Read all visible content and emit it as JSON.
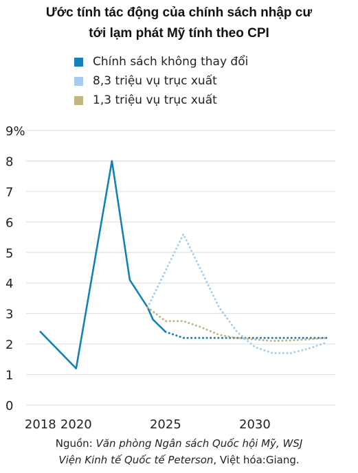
{
  "title": {
    "line1": "Ước tính tác động của chính sách nhập cư",
    "line2": "tới lạm phát Mỹ tính theo CPI"
  },
  "colors": {
    "policy_unchanged": "#1380b8",
    "deport_8_3m": "#a6cdee",
    "deport_1_3m": "#c2b57e",
    "grid": "#dcdcdc"
  },
  "source": {
    "prefix": "Nguồn: ",
    "org1": "Văn phòng Ngân sách Quốc hội Mỹ, WSJ",
    "org2": "Viện Kinh tế Quốc tế Peterson",
    "suffix": ", Việt hóa:Giang."
  },
  "chart_data": {
    "type": "line",
    "y_ticks": [
      "0",
      "1",
      "2",
      "3",
      "4",
      "5",
      "6",
      "7",
      "8",
      "9%"
    ],
    "x_ticks": [
      "2018",
      "2020",
      "2025",
      "2030"
    ],
    "xlim": [
      2017.2,
      2034.5
    ],
    "ylim": [
      0,
      9
    ],
    "grid": true,
    "legend_position": "top-left",
    "series": [
      {
        "name": "Chính sách không thay đổi",
        "color_key": "policy_unchanged",
        "segments": [
          {
            "style": "solid",
            "points": [
              [
                2018,
                2.4
              ],
              [
                2020,
                1.2
              ],
              [
                2022,
                8.0
              ],
              [
                2023,
                4.1
              ],
              [
                2024,
                3.2
              ],
              [
                2024.3,
                2.8
              ],
              [
                2025,
                2.4
              ]
            ]
          },
          {
            "style": "dotted",
            "points": [
              [
                2025,
                2.4
              ],
              [
                2026,
                2.2
              ],
              [
                2028,
                2.2
              ],
              [
                2030,
                2.2
              ],
              [
                2032,
                2.2
              ],
              [
                2034,
                2.2
              ]
            ]
          }
        ]
      },
      {
        "name": "8,3 triệu vụ trục xuất",
        "color_key": "deport_8_3m",
        "segments": [
          {
            "style": "dotted",
            "points": [
              [
                2024,
                3.2
              ],
              [
                2025,
                4.4
              ],
              [
                2026,
                5.6
              ],
              [
                2027,
                4.4
              ],
              [
                2028,
                3.2
              ],
              [
                2029,
                2.4
              ],
              [
                2030,
                1.9
              ],
              [
                2031,
                1.7
              ],
              [
                2032,
                1.7
              ],
              [
                2033,
                1.85
              ],
              [
                2034,
                2.05
              ]
            ]
          }
        ]
      },
      {
        "name": "1,3 triệu vụ trục xuất",
        "color_key": "deport_1_3m",
        "segments": [
          {
            "style": "dotted",
            "points": [
              [
                2024,
                3.2
              ],
              [
                2025,
                2.75
              ],
              [
                2026,
                2.75
              ],
              [
                2027,
                2.55
              ],
              [
                2028,
                2.3
              ],
              [
                2029,
                2.2
              ],
              [
                2030,
                2.15
              ],
              [
                2031,
                2.1
              ],
              [
                2032,
                2.12
              ],
              [
                2033,
                2.15
              ],
              [
                2034,
                2.2
              ]
            ]
          }
        ]
      }
    ]
  }
}
